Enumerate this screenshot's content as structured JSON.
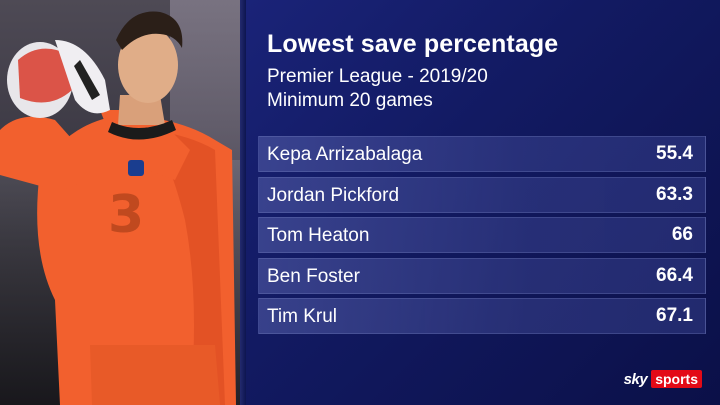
{
  "header": {
    "title": "Lowest save percentage",
    "subtitle_line1": "Premier League - 2019/20",
    "subtitle_line2": "Minimum 20 games"
  },
  "table": {
    "rows": [
      {
        "name": "Kepa Arrizabalaga",
        "value": "55.4"
      },
      {
        "name": "Jordan Pickford",
        "value": "63.3"
      },
      {
        "name": "Tom Heaton",
        "value": "66"
      },
      {
        "name": "Ben Foster",
        "value": "66.4"
      },
      {
        "name": "Tim Krul",
        "value": "67.1"
      }
    ]
  },
  "logo": {
    "sky": "sky",
    "sports": "sports"
  },
  "colors": {
    "panel_background": "#121a62",
    "row_fill": "#4a549e",
    "text": "#ffffff",
    "kit_orange": "#f2602e",
    "logo_red": "#e30a17"
  }
}
